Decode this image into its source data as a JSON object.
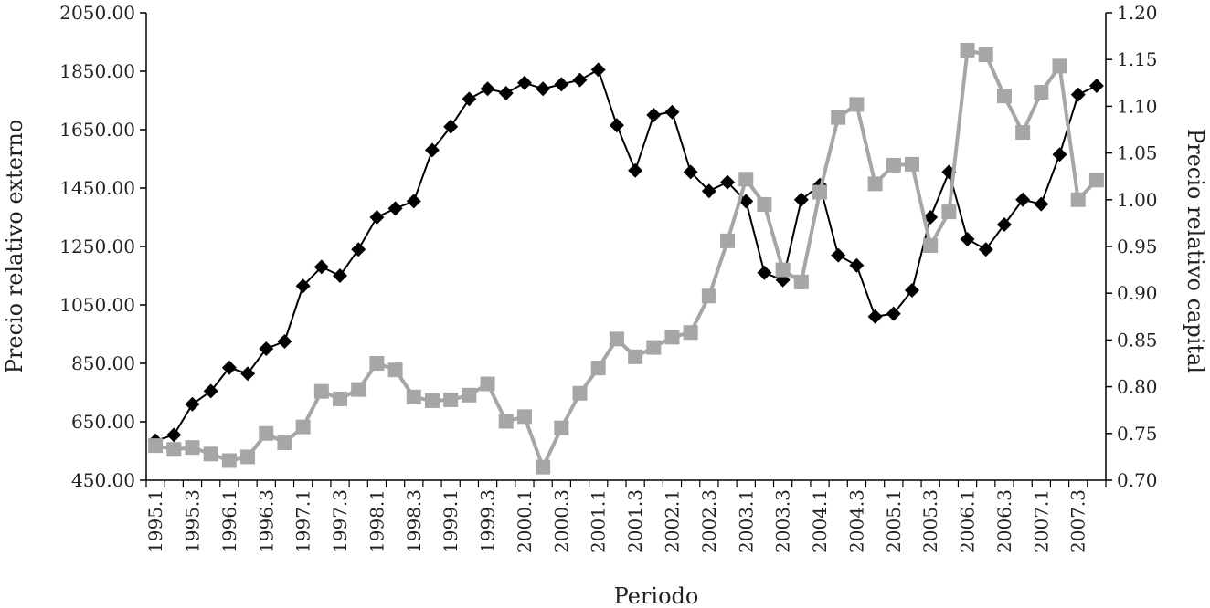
{
  "chart_data": {
    "type": "line",
    "xlabel": "Periodo",
    "ylabel_left": "Precio relativo externo",
    "ylabel_right": "Precio relativo capital",
    "ylim_left": [
      450,
      2050
    ],
    "ylim_right": [
      0.7,
      1.2
    ],
    "yticks_left": [
      "450.00",
      "650.00",
      "850.00",
      "1050.00",
      "1250.00",
      "1450.00",
      "1650.00",
      "1850.00",
      "2050.00"
    ],
    "yticks_right": [
      "0.70",
      "0.75",
      "0.80",
      "0.85",
      "0.90",
      "0.95",
      "1.00",
      "1.05",
      "1.10",
      "1.15",
      "1.20"
    ],
    "categories": [
      "1995.1",
      "1995.2",
      "1995.3",
      "1995.4",
      "1996.1",
      "1996.2",
      "1996.3",
      "1996.4",
      "1997.1",
      "1997.2",
      "1997.3",
      "1997.4",
      "1998.1",
      "1998.2",
      "1998.3",
      "1998.4",
      "1999.1",
      "1999.2",
      "1999.3",
      "1999.4",
      "2000.1",
      "2000.2",
      "2000.3",
      "2000.4",
      "2001.1",
      "2001.2",
      "2001.3",
      "2001.4",
      "2002.1",
      "2002.2",
      "2002.3",
      "2002.4",
      "2003.1",
      "2003.2",
      "2003.3",
      "2003.4",
      "2004.1",
      "2004.2",
      "2004.3",
      "2004.4",
      "2005.1",
      "2005.2",
      "2005.3",
      "2005.4",
      "2006.1",
      "2006.2",
      "2006.3",
      "2006.4",
      "2007.1",
      "2007.2",
      "2007.3",
      "2007.4"
    ],
    "tick_labels": [
      "1995.1",
      "1995.3",
      "1996.1",
      "1996.3",
      "1997.1",
      "1997.3",
      "1998.1",
      "1998.3",
      "1999.1",
      "1999.3",
      "2000.1",
      "2000.3",
      "2001.1",
      "2001.3",
      "2002.1",
      "2002.3",
      "2003.1",
      "2003.3",
      "2004.1",
      "2004.3",
      "2005.1",
      "2005.3",
      "2006.1",
      "2006.3",
      "2007.1",
      "2007.3"
    ],
    "series": [
      {
        "axis": "left",
        "marker": "diamond",
        "color": "#000000",
        "values": [
          585,
          605,
          710,
          755,
          835,
          815,
          900,
          925,
          1115,
          1180,
          1150,
          1240,
          1350,
          1380,
          1405,
          1580,
          1660,
          1755,
          1790,
          1775,
          1810,
          1790,
          1805,
          1820,
          1855,
          1665,
          1510,
          1700,
          1710,
          1505,
          1440,
          1470,
          1405,
          1160,
          1135,
          1410,
          1460,
          1220,
          1185,
          1010,
          1020,
          1100,
          1350,
          1505,
          1275,
          1240,
          1325,
          1410,
          1395,
          1565,
          1770,
          1800
        ]
      },
      {
        "axis": "right",
        "marker": "square",
        "color": "#a6a6a6",
        "values": [
          0.737,
          0.733,
          0.735,
          0.728,
          0.721,
          0.725,
          0.75,
          0.74,
          0.757,
          0.795,
          0.787,
          0.797,
          0.825,
          0.818,
          0.789,
          0.785,
          0.786,
          0.791,
          0.803,
          0.763,
          0.768,
          0.714,
          0.756,
          0.793,
          0.82,
          0.851,
          0.832,
          0.842,
          0.853,
          0.858,
          0.897,
          0.956,
          1.022,
          0.995,
          0.925,
          0.912,
          1.008,
          1.088,
          1.102,
          1.017,
          1.037,
          1.038,
          0.951,
          0.987,
          1.16,
          1.155,
          1.111,
          1.072,
          1.115,
          1.143,
          1.0,
          1.021
        ]
      }
    ]
  }
}
